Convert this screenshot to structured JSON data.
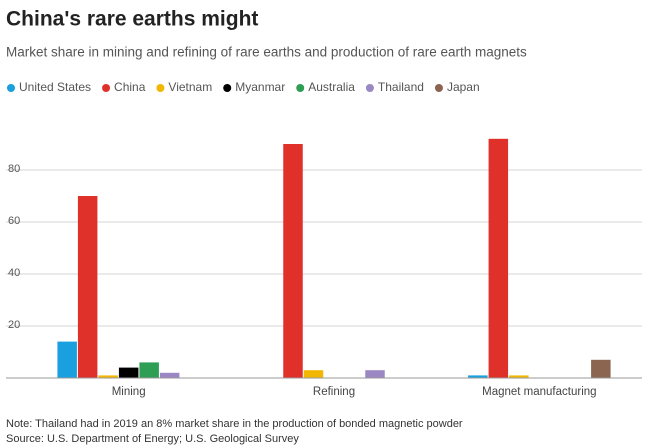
{
  "chart_data": {
    "type": "bar",
    "title": "China's rare earths might",
    "subtitle": "Market share in mining and refining of rare earths and production of rare earth magnets",
    "categories": [
      "Mining",
      "Refining",
      "Magnet manufacturing"
    ],
    "series": [
      {
        "name": "United States",
        "color": "#1a9fdf",
        "values": [
          14,
          0,
          1
        ]
      },
      {
        "name": "China",
        "color": "#e0302a",
        "values": [
          70,
          90,
          92
        ]
      },
      {
        "name": "Vietnam",
        "color": "#f2b705",
        "values": [
          1,
          3,
          1
        ]
      },
      {
        "name": "Myanmar",
        "color": "#000000",
        "values": [
          4,
          0,
          0
        ]
      },
      {
        "name": "Australia",
        "color": "#2e9e55",
        "values": [
          6,
          0,
          0
        ]
      },
      {
        "name": "Thailand",
        "color": "#9b87c4",
        "values": [
          2,
          3,
          0
        ]
      },
      {
        "name": "Japan",
        "color": "#8b6550",
        "values": [
          0,
          0,
          7
        ]
      }
    ],
    "ylim": [
      0,
      100
    ],
    "yticks": [
      20,
      40,
      60,
      80
    ],
    "grid": true,
    "note": "Note: Thailand had in 2019 an 8% market share in the production of bonded magnetic powder",
    "source": "Source: U.S. Department of Energy; U.S. Geological Survey"
  }
}
